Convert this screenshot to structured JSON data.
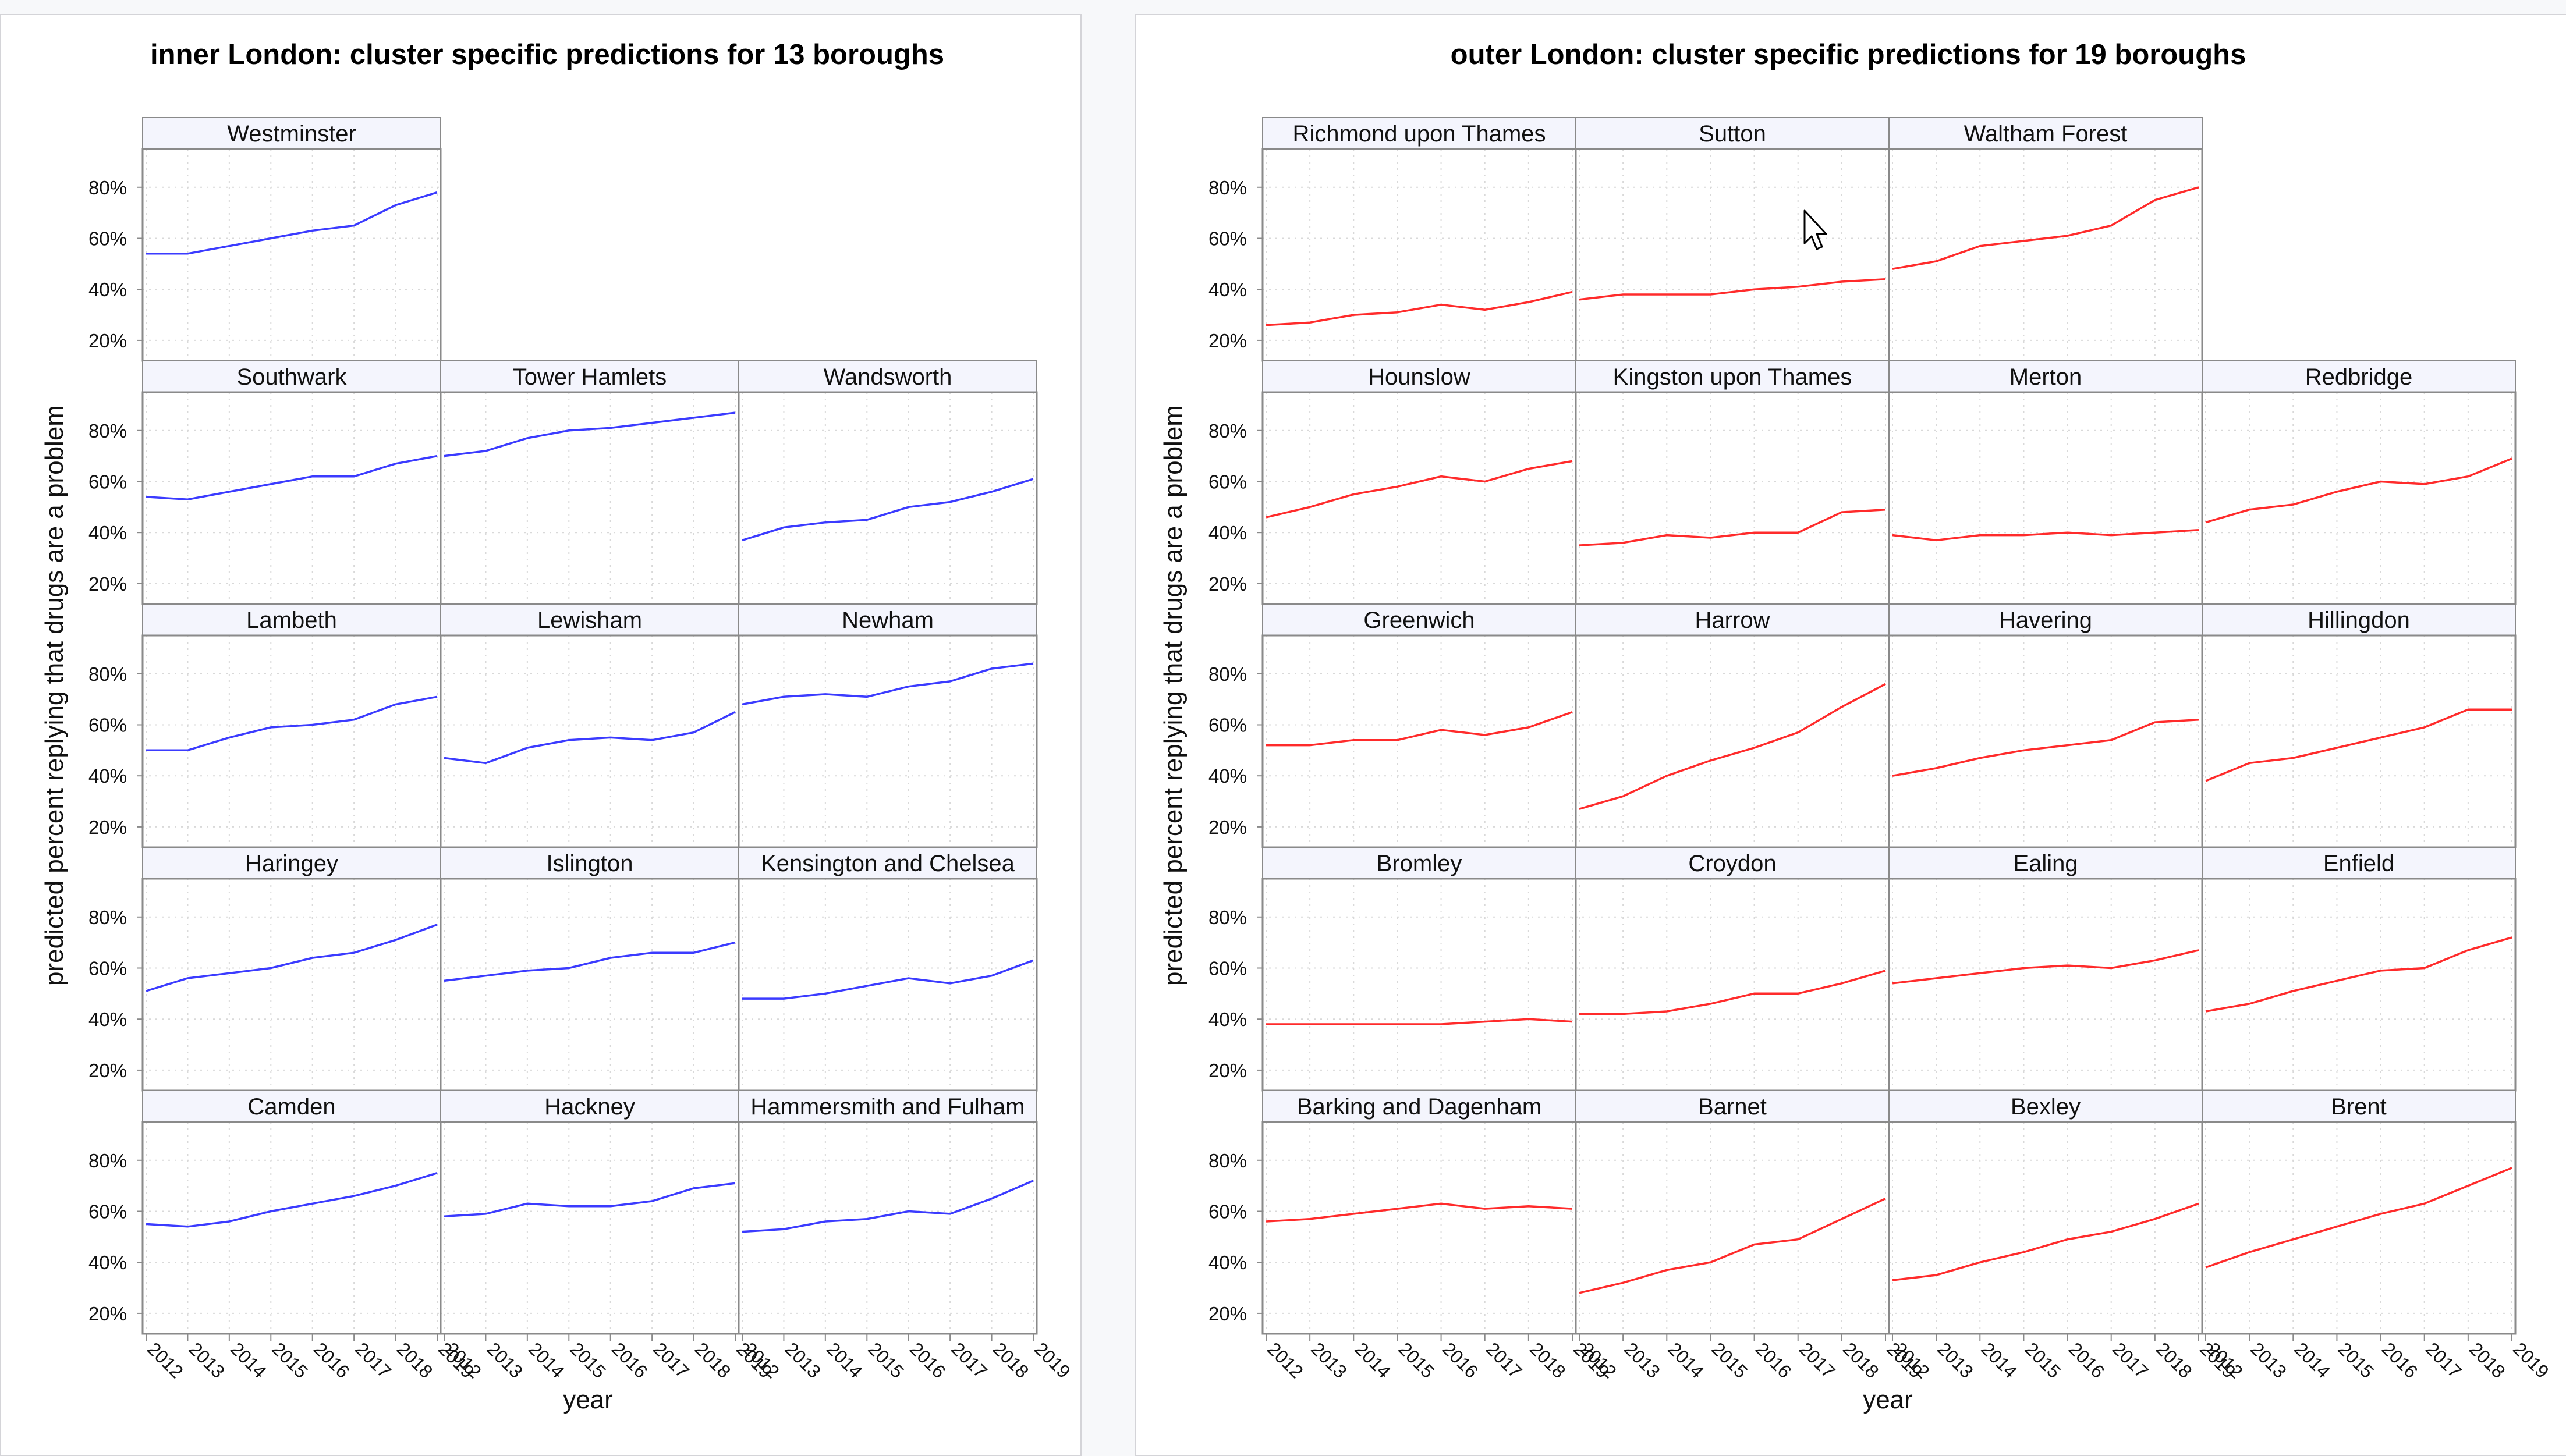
{
  "colors": {
    "inner": "#3b3bff",
    "outer": "#ff2b2b",
    "strip_fill": "#f4f5fd",
    "frame": "#8a8a8a",
    "grid": "#d9d9d9"
  },
  "chart_data": [
    {
      "type": "line",
      "id": "inner",
      "title": "inner London: cluster specific predictions for 13 boroughs",
      "xlabel": "year",
      "ylabel": "predicted percent replying that drugs are a problem",
      "x": [
        2012,
        2013,
        2014,
        2015,
        2016,
        2017,
        2018,
        2019
      ],
      "x_tick_labels": [
        "2012",
        "2013",
        "2014",
        "2015",
        "2016",
        "2017",
        "2018",
        "2019"
      ],
      "ylim": [
        12,
        95
      ],
      "y_ticks": [
        20,
        40,
        60,
        80
      ],
      "y_tick_labels": [
        "20%",
        "40%",
        "60%",
        "80%"
      ],
      "grid": true,
      "rows": [
        [
          {
            "name": "Westminster",
            "values": [
              54,
              54,
              57,
              60,
              63,
              65,
              73,
              78
            ]
          }
        ],
        [
          {
            "name": "Southwark",
            "values": [
              54,
              53,
              56,
              59,
              62,
              62,
              67,
              70
            ]
          },
          {
            "name": "Tower Hamlets",
            "values": [
              70,
              72,
              77,
              80,
              81,
              83,
              85,
              87
            ]
          },
          {
            "name": "Wandsworth",
            "values": [
              37,
              42,
              44,
              45,
              50,
              52,
              56,
              61
            ]
          }
        ],
        [
          {
            "name": "Lambeth",
            "values": [
              50,
              50,
              55,
              59,
              60,
              62,
              68,
              71
            ]
          },
          {
            "name": "Lewisham",
            "values": [
              47,
              45,
              51,
              54,
              55,
              54,
              57,
              65
            ]
          },
          {
            "name": "Newham",
            "values": [
              68,
              71,
              72,
              71,
              75,
              77,
              82,
              84
            ]
          }
        ],
        [
          {
            "name": "Haringey",
            "values": [
              51,
              56,
              58,
              60,
              64,
              66,
              71,
              77
            ]
          },
          {
            "name": "Islington",
            "values": [
              55,
              57,
              59,
              60,
              64,
              66,
              66,
              70
            ]
          },
          {
            "name": "Kensington and Chelsea",
            "values": [
              48,
              48,
              50,
              53,
              56,
              54,
              57,
              63
            ]
          }
        ],
        [
          {
            "name": "Camden",
            "values": [
              55,
              54,
              56,
              60,
              63,
              66,
              70,
              75
            ]
          },
          {
            "name": "Hackney",
            "values": [
              58,
              59,
              63,
              62,
              62,
              64,
              69,
              71
            ]
          },
          {
            "name": "Hammersmith and Fulham",
            "values": [
              52,
              53,
              56,
              57,
              60,
              59,
              65,
              72
            ]
          }
        ]
      ]
    },
    {
      "type": "line",
      "id": "outer",
      "title": "outer London: cluster specific predictions for 19 boroughs",
      "xlabel": "year",
      "ylabel": "predicted percent replying that drugs are a problem",
      "x": [
        2012,
        2013,
        2014,
        2015,
        2016,
        2017,
        2018,
        2019
      ],
      "x_tick_labels": [
        "2012",
        "2013",
        "2014",
        "2015",
        "2016",
        "2017",
        "2018",
        "2019"
      ],
      "ylim": [
        12,
        95
      ],
      "y_ticks": [
        20,
        40,
        60,
        80
      ],
      "y_tick_labels": [
        "20%",
        "40%",
        "60%",
        "80%"
      ],
      "grid": true,
      "rows": [
        [
          {
            "name": "Richmond upon Thames",
            "values": [
              26,
              27,
              30,
              31,
              34,
              32,
              35,
              39
            ]
          },
          {
            "name": "Sutton",
            "values": [
              36,
              38,
              38,
              38,
              40,
              41,
              43,
              44
            ]
          },
          {
            "name": "Waltham Forest",
            "values": [
              48,
              51,
              57,
              59,
              61,
              65,
              75,
              80
            ]
          }
        ],
        [
          {
            "name": "Hounslow",
            "values": [
              46,
              50,
              55,
              58,
              62,
              60,
              65,
              68
            ]
          },
          {
            "name": "Kingston upon Thames",
            "values": [
              35,
              36,
              39,
              38,
              40,
              40,
              48,
              49
            ]
          },
          {
            "name": "Merton",
            "values": [
              39,
              37,
              39,
              39,
              40,
              39,
              40,
              41
            ]
          },
          {
            "name": "Redbridge",
            "values": [
              44,
              49,
              51,
              56,
              60,
              59,
              62,
              69
            ]
          }
        ],
        [
          {
            "name": "Greenwich",
            "values": [
              52,
              52,
              54,
              54,
              58,
              56,
              59,
              65
            ]
          },
          {
            "name": "Harrow",
            "values": [
              27,
              32,
              40,
              46,
              51,
              57,
              67,
              76
            ]
          },
          {
            "name": "Havering",
            "values": [
              40,
              43,
              47,
              50,
              52,
              54,
              61,
              62
            ]
          },
          {
            "name": "Hillingdon",
            "values": [
              38,
              45,
              47,
              51,
              55,
              59,
              66,
              66
            ]
          }
        ],
        [
          {
            "name": "Bromley",
            "values": [
              38,
              38,
              38,
              38,
              38,
              39,
              40,
              39
            ]
          },
          {
            "name": "Croydon",
            "values": [
              42,
              42,
              43,
              46,
              50,
              50,
              54,
              59
            ]
          },
          {
            "name": "Ealing",
            "values": [
              54,
              56,
              58,
              60,
              61,
              60,
              63,
              67
            ]
          },
          {
            "name": "Enfield",
            "values": [
              43,
              46,
              51,
              55,
              59,
              60,
              67,
              72
            ]
          }
        ],
        [
          {
            "name": "Barking and Dagenham",
            "values": [
              56,
              57,
              59,
              61,
              63,
              61,
              62,
              61
            ]
          },
          {
            "name": "Barnet",
            "values": [
              28,
              32,
              37,
              40,
              47,
              49,
              57,
              65
            ]
          },
          {
            "name": "Bexley",
            "values": [
              33,
              35,
              40,
              44,
              49,
              52,
              57,
              63
            ]
          },
          {
            "name": "Brent",
            "values": [
              38,
              44,
              49,
              54,
              59,
              63,
              70,
              77
            ]
          }
        ]
      ]
    }
  ]
}
